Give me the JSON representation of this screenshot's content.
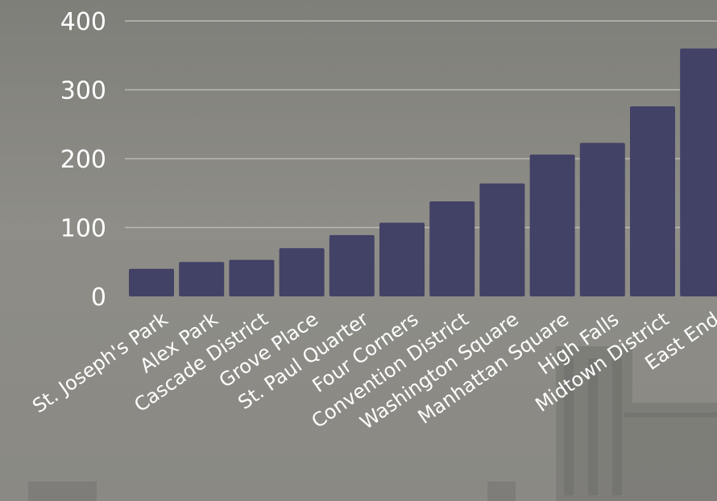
{
  "chart_data": {
    "type": "bar",
    "categories": [
      "St. Joseph's Park",
      "Alex Park",
      "Cascade District",
      "Grove Place",
      "St. Paul Quarter",
      "Four Corners",
      "Convention District",
      "Washington Square",
      "Manhattan Square",
      "High Falls",
      "Midtown District",
      "East End"
    ],
    "values": [
      40,
      50,
      53,
      70,
      89,
      107,
      138,
      164,
      206,
      223,
      276,
      360
    ],
    "ylim": [
      0,
      400
    ],
    "y_ticks": [
      0,
      100,
      200,
      300,
      400
    ],
    "grid": true,
    "legend": "none",
    "colors": {
      "bar": "#424166",
      "background": "#8c8b86",
      "text": "#ffffff",
      "gridline": "#b9b8b2"
    }
  }
}
